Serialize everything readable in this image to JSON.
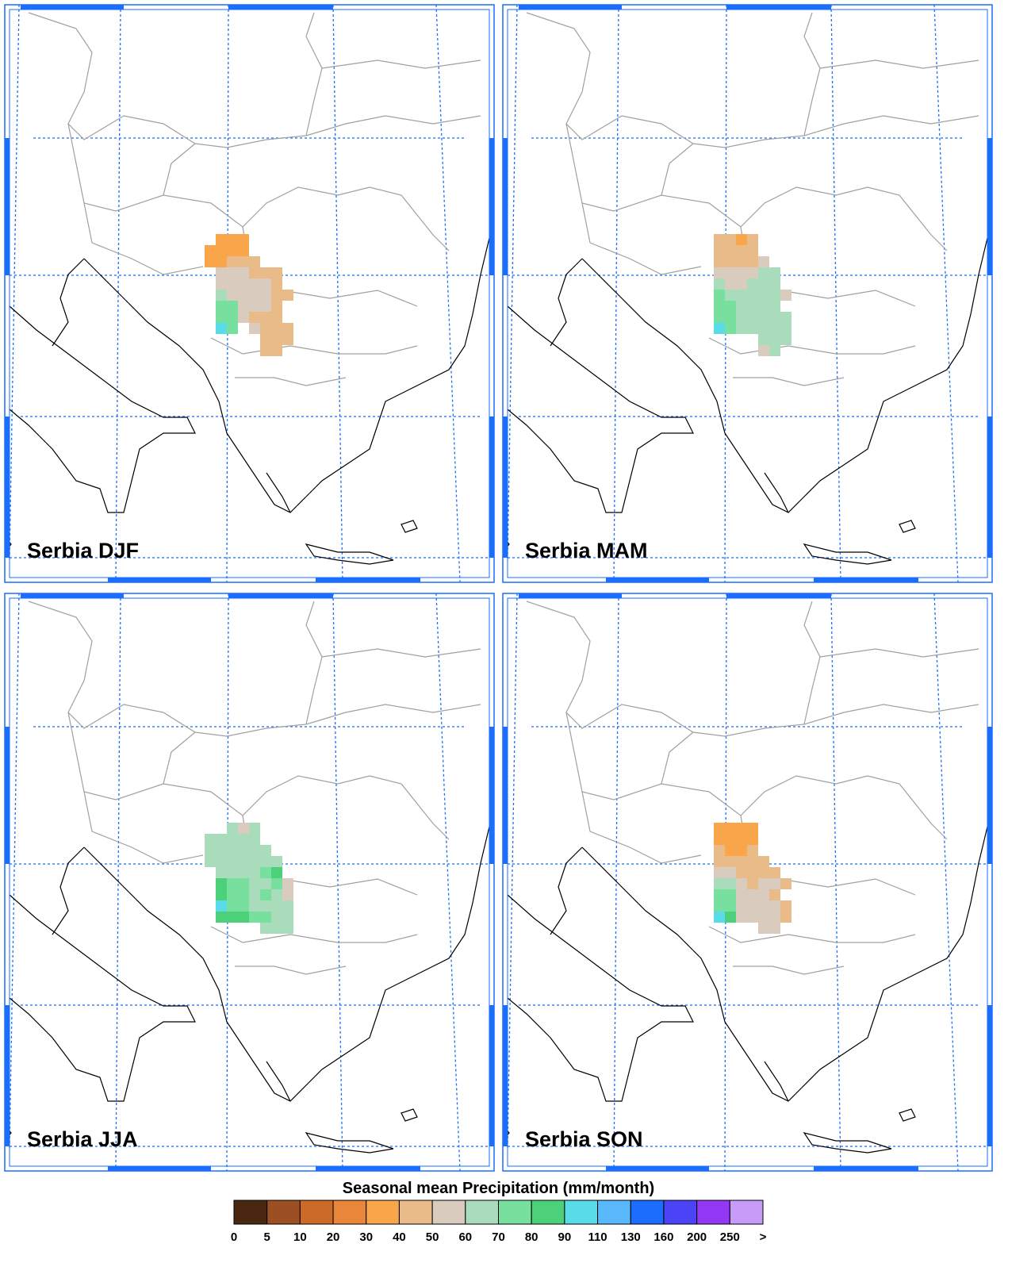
{
  "panels": [
    {
      "title": "Serbia DJF",
      "grid": [
        [
          null,
          35,
          35,
          35,
          null,
          null,
          null,
          null
        ],
        [
          35,
          35,
          35,
          35,
          null,
          null,
          null,
          null
        ],
        [
          35,
          35,
          45,
          45,
          45,
          null,
          null,
          null
        ],
        [
          null,
          55,
          55,
          55,
          45,
          45,
          45,
          null
        ],
        [
          null,
          55,
          55,
          55,
          55,
          55,
          45,
          null
        ],
        [
          null,
          65,
          55,
          55,
          55,
          55,
          45,
          45
        ],
        [
          null,
          75,
          75,
          55,
          55,
          55,
          45,
          null
        ],
        [
          null,
          75,
          75,
          55,
          45,
          45,
          45,
          null
        ],
        [
          null,
          95,
          75,
          null,
          55,
          45,
          45,
          45
        ],
        [
          null,
          null,
          null,
          null,
          null,
          45,
          45,
          45
        ],
        [
          null,
          null,
          null,
          null,
          null,
          45,
          45,
          null
        ]
      ]
    },
    {
      "title": "Serbia MAM",
      "grid": [
        [
          null,
          45,
          45,
          35,
          45,
          null,
          null,
          null
        ],
        [
          null,
          45,
          45,
          45,
          45,
          null,
          null,
          null
        ],
        [
          null,
          45,
          45,
          45,
          45,
          55,
          null,
          null
        ],
        [
          null,
          55,
          55,
          55,
          55,
          65,
          65,
          null
        ],
        [
          null,
          65,
          55,
          55,
          65,
          65,
          65,
          null
        ],
        [
          null,
          75,
          65,
          65,
          65,
          65,
          65,
          55
        ],
        [
          null,
          75,
          75,
          65,
          65,
          65,
          65,
          null
        ],
        [
          null,
          75,
          75,
          65,
          65,
          65,
          65,
          65
        ],
        [
          null,
          95,
          75,
          65,
          65,
          65,
          65,
          65
        ],
        [
          null,
          null,
          null,
          null,
          null,
          65,
          65,
          65
        ],
        [
          null,
          null,
          null,
          null,
          null,
          55,
          65,
          null
        ]
      ]
    },
    {
      "title": "Serbia JJA",
      "grid": [
        [
          null,
          null,
          65,
          55,
          65,
          null,
          null,
          null
        ],
        [
          65,
          65,
          65,
          65,
          65,
          null,
          null,
          null
        ],
        [
          65,
          65,
          65,
          65,
          65,
          65,
          null,
          null
        ],
        [
          65,
          65,
          65,
          65,
          65,
          65,
          65,
          null
        ],
        [
          null,
          65,
          65,
          65,
          65,
          75,
          85,
          null
        ],
        [
          null,
          85,
          75,
          75,
          65,
          65,
          75,
          55
        ],
        [
          null,
          85,
          75,
          75,
          65,
          75,
          65,
          55
        ],
        [
          null,
          95,
          75,
          75,
          65,
          65,
          65,
          65
        ],
        [
          null,
          85,
          85,
          85,
          75,
          75,
          65,
          65
        ],
        [
          null,
          null,
          null,
          null,
          null,
          65,
          65,
          65
        ]
      ]
    },
    {
      "title": "Serbia SON",
      "grid": [
        [
          null,
          35,
          35,
          35,
          35,
          null,
          null,
          null
        ],
        [
          null,
          35,
          35,
          35,
          35,
          null,
          null,
          null
        ],
        [
          null,
          45,
          35,
          35,
          45,
          null,
          null,
          null
        ],
        [
          null,
          45,
          45,
          45,
          45,
          45,
          null,
          null
        ],
        [
          null,
          55,
          55,
          45,
          45,
          45,
          45,
          null
        ],
        [
          null,
          65,
          65,
          55,
          45,
          55,
          55,
          45
        ],
        [
          null,
          75,
          75,
          55,
          55,
          55,
          45,
          null
        ],
        [
          null,
          75,
          75,
          55,
          55,
          55,
          55,
          45
        ],
        [
          null,
          95,
          85,
          55,
          55,
          55,
          55,
          45
        ],
        [
          null,
          null,
          null,
          null,
          null,
          55,
          55,
          null
        ]
      ]
    }
  ],
  "colorbar": {
    "title": "Seasonal mean Precipitation (mm/month)",
    "levels": [
      0,
      5,
      10,
      20,
      30,
      40,
      50,
      60,
      70,
      80,
      90,
      110,
      130,
      160,
      200,
      250
    ],
    "over_label": ">",
    "colors": [
      "#4a2710",
      "#9c4f22",
      "#cc6a28",
      "#e8873a",
      "#f9a64a",
      "#e9bb88",
      "#d9cbbd",
      "#a9dcbb",
      "#78e09e",
      "#4cd07a",
      "#59dbe8",
      "#5ab8fc",
      "#1a6efb",
      "#4a44f6",
      "#9238f4",
      "#c99bf8"
    ]
  }
}
